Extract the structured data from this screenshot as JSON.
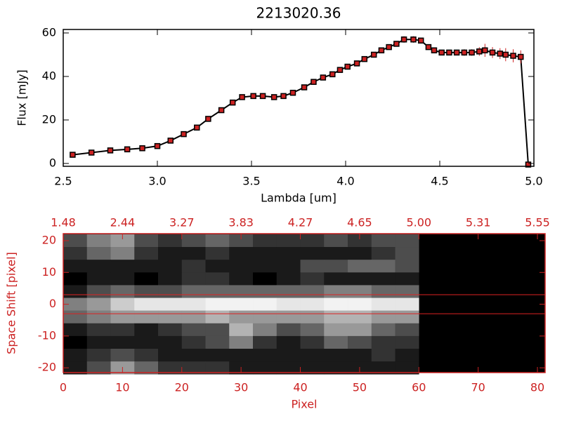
{
  "chart_data": [
    {
      "type": "line",
      "title": "2213020.36",
      "xlabel": "Lambda [um]",
      "ylabel": "Flux [mJy]",
      "x": [
        2.55,
        2.65,
        2.75,
        2.84,
        2.92,
        3.0,
        3.07,
        3.14,
        3.21,
        3.27,
        3.34,
        3.4,
        3.45,
        3.51,
        3.56,
        3.62,
        3.67,
        3.72,
        3.78,
        3.83,
        3.88,
        3.93,
        3.97,
        4.01,
        4.06,
        4.1,
        4.15,
        4.19,
        4.23,
        4.27,
        4.31,
        4.36,
        4.4,
        4.44,
        4.47,
        4.51,
        4.55,
        4.59,
        4.63,
        4.67,
        4.71,
        4.74,
        4.78,
        4.82,
        4.85,
        4.89,
        4.93,
        4.97
      ],
      "series": [
        {
          "values": [
            4,
            5,
            6,
            6.5,
            7,
            8,
            10.5,
            13.5,
            16.5,
            20.5,
            24.5,
            28,
            30.5,
            31,
            31,
            30.5,
            31,
            32.5,
            35,
            37.5,
            39.5,
            41,
            43,
            44.5,
            46,
            48,
            50,
            52,
            53.5,
            55,
            57,
            57,
            56.5,
            53.5,
            52,
            51,
            51,
            51,
            51,
            51,
            51.5,
            52,
            51,
            50.5,
            50,
            49.5,
            49,
            -0.5
          ],
          "errors": [
            0.5,
            0.5,
            0.5,
            0.5,
            0.5,
            0.5,
            0.7,
            0.7,
            0.7,
            0.7,
            0.7,
            0.7,
            1,
            1,
            1,
            1,
            1,
            1,
            1,
            1,
            1,
            1,
            1,
            1,
            1,
            1,
            1,
            1,
            1,
            1,
            1.5,
            1.5,
            1,
            1,
            1,
            1,
            1,
            1,
            1.5,
            1.5,
            2,
            3,
            2.5,
            2.5,
            3,
            3,
            3,
            0.5
          ],
          "color": "#000000",
          "marker_color": "#cc2222",
          "error_color": "#cc2222"
        }
      ],
      "xlim": [
        2.5,
        5.0
      ],
      "ylim": [
        -1.3,
        61.6
      ],
      "xticks": [
        2.5,
        {
          "value": 3,
          "label": "3.0"
        },
        3.5,
        {
          "value": 4,
          "label": "4.0"
        },
        4.5,
        {
          "value": 5,
          "label": "5.0"
        }
      ],
      "yticks": [
        0,
        20,
        40,
        60
      ],
      "axis_color": "#000000"
    },
    {
      "type": "heatmap",
      "xlabel": "Pixel",
      "ylabel": "Space Shift [pixel]",
      "x_edges": [
        0,
        4,
        8,
        12,
        16,
        20,
        24,
        28,
        32,
        36,
        40,
        44,
        48,
        52,
        56,
        60
      ],
      "y_edges": [
        22,
        18,
        14,
        10,
        6,
        2,
        -2,
        -6,
        -10,
        -14,
        -18,
        -22
      ],
      "z": [
        [
          0.3,
          0.5,
          0.6,
          0.3,
          0.2,
          0.3,
          0.4,
          0.3,
          0.2,
          0.2,
          0.2,
          0.3,
          0.2,
          0.3,
          0.3
        ],
        [
          0.2,
          0.4,
          0.5,
          0.2,
          0.1,
          0.1,
          0.2,
          0.1,
          0.1,
          0.1,
          0.1,
          0.1,
          0.1,
          0.2,
          0.3
        ],
        [
          0.1,
          0.1,
          0.1,
          0.1,
          0.1,
          0.2,
          0.1,
          0.1,
          0.1,
          0.1,
          0.3,
          0.3,
          0.4,
          0.4,
          0.3
        ],
        [
          0.0,
          0.1,
          0.1,
          0.0,
          0.1,
          0.2,
          0.2,
          0.1,
          0.0,
          0.1,
          0.2,
          0.1,
          0.1,
          0.1,
          0.1
        ],
        [
          0.1,
          0.3,
          0.4,
          0.3,
          0.3,
          0.4,
          0.4,
          0.4,
          0.4,
          0.4,
          0.4,
          0.5,
          0.5,
          0.4,
          0.4
        ],
        [
          0.5,
          0.6,
          0.8,
          0.9,
          0.9,
          0.9,
          0.95,
          0.95,
          0.95,
          0.9,
          0.9,
          0.95,
          0.95,
          0.9,
          0.9
        ],
        [
          0.4,
          0.5,
          0.6,
          0.6,
          0.6,
          0.6,
          0.7,
          0.6,
          0.6,
          0.6,
          0.6,
          0.7,
          0.7,
          0.6,
          0.6
        ],
        [
          0.1,
          0.2,
          0.2,
          0.1,
          0.2,
          0.3,
          0.3,
          0.7,
          0.5,
          0.3,
          0.4,
          0.6,
          0.6,
          0.4,
          0.3
        ],
        [
          0.0,
          0.1,
          0.1,
          0.1,
          0.1,
          0.2,
          0.3,
          0.5,
          0.2,
          0.1,
          0.2,
          0.4,
          0.3,
          0.2,
          0.2
        ],
        [
          0.1,
          0.2,
          0.3,
          0.2,
          0.1,
          0.1,
          0.1,
          0.1,
          0.1,
          0.1,
          0.1,
          0.1,
          0.1,
          0.2,
          0.1
        ],
        [
          0.1,
          0.3,
          0.6,
          0.4,
          0.2,
          0.2,
          0.2,
          0.1,
          0.1,
          0.1,
          0.1,
          0.1,
          0.1,
          0.1,
          0.1
        ]
      ],
      "zlim": [
        0,
        1
      ],
      "colormap": "gray",
      "background": "#000000",
      "xlim": [
        0,
        81.3
      ],
      "ylim": [
        -21.5,
        22.2
      ],
      "xticks": [
        0,
        10,
        20,
        30,
        40,
        50,
        60,
        70,
        80
      ],
      "yticks": [
        -20,
        -10,
        0,
        10,
        20
      ],
      "x2ticks": [
        {
          "value": 0,
          "label": "1.48"
        },
        {
          "value": 10,
          "label": "2.44"
        },
        {
          "value": 20,
          "label": "3.27"
        },
        {
          "value": 30,
          "label": "3.83"
        },
        {
          "value": 40,
          "label": "4.27"
        },
        {
          "value": 50,
          "label": "4.65"
        },
        {
          "value": 60,
          "label": "5.00"
        },
        {
          "value": 70,
          "label": "5.31"
        },
        {
          "value": 80,
          "label": "5.55"
        }
      ],
      "hlines": [
        3,
        -3
      ],
      "hline_color": "#dd2222",
      "axis_color": "#cc2222"
    }
  ]
}
